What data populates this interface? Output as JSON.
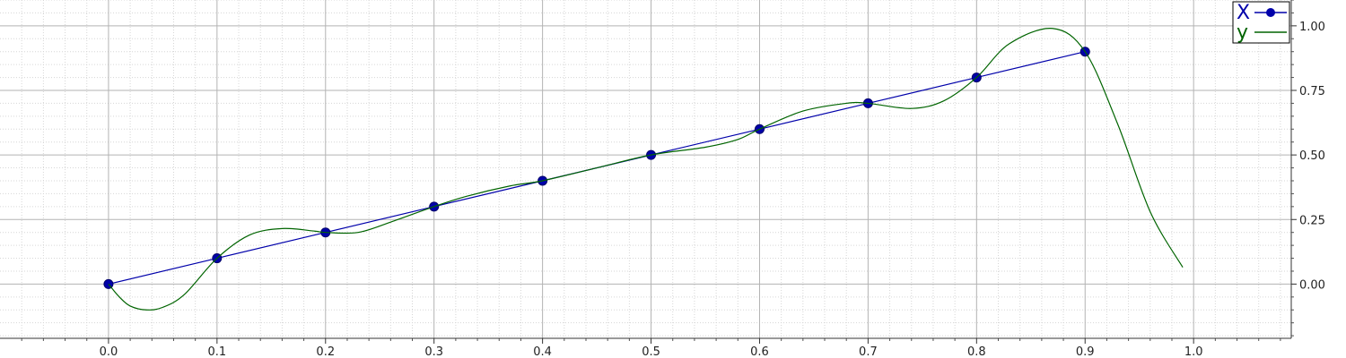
{
  "chart_data": {
    "type": "line",
    "xlim": [
      -0.1,
      1.09
    ],
    "ylim": [
      -0.21,
      1.1
    ],
    "x_ticks": [
      "0.0",
      "0.1",
      "0.2",
      "0.3",
      "0.4",
      "0.5",
      "0.6",
      "0.7",
      "0.8",
      "0.9",
      "1.0"
    ],
    "y_ticks": [
      "0.00",
      "0.25",
      "0.50",
      "0.75",
      "1.00"
    ],
    "grid": true,
    "legend_position": "top-right",
    "series": [
      {
        "name": "X",
        "color": "#0000aa",
        "marker": "circle",
        "x": [
          0.0,
          0.1,
          0.2,
          0.3,
          0.4,
          0.5,
          0.6,
          0.7,
          0.8,
          0.9
        ],
        "y": [
          0.0,
          0.1,
          0.2,
          0.3,
          0.4,
          0.5,
          0.6,
          0.7,
          0.8,
          0.9
        ]
      },
      {
        "name": "y",
        "color": "#006400",
        "marker": "none",
        "x": [
          0.0,
          0.01,
          0.02,
          0.035,
          0.05,
          0.07,
          0.1,
          0.13,
          0.16,
          0.19,
          0.2,
          0.23,
          0.26,
          0.3,
          0.33,
          0.37,
          0.4,
          0.45,
          0.5,
          0.55,
          0.58,
          0.6,
          0.64,
          0.68,
          0.7,
          0.74,
          0.77,
          0.8,
          0.83,
          0.87,
          0.9,
          0.93,
          0.96,
          0.99
        ],
        "y": [
          0.0,
          -0.05,
          -0.085,
          -0.1,
          -0.09,
          -0.04,
          0.1,
          0.19,
          0.215,
          0.205,
          0.2,
          0.2,
          0.24,
          0.3,
          0.34,
          0.38,
          0.4,
          0.45,
          0.5,
          0.53,
          0.56,
          0.6,
          0.67,
          0.7,
          0.7,
          0.68,
          0.71,
          0.8,
          0.93,
          0.99,
          0.9,
          0.62,
          0.28,
          0.065
        ]
      }
    ]
  }
}
